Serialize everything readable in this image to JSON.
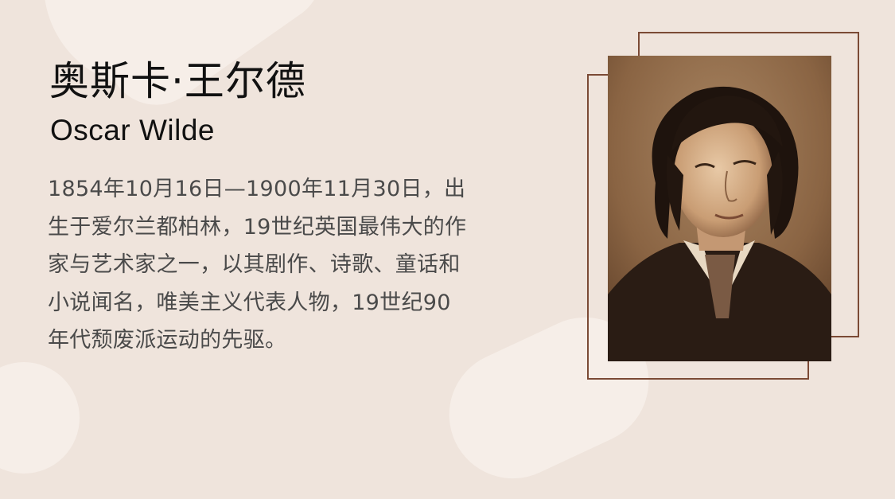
{
  "title_zh": "奥斯卡·王尔德",
  "title_en": "Oscar Wilde",
  "bio_lines": [
    "1854年10月16日—1900年11月30日，出",
    "生于爱尔兰都柏林，19世纪英国最伟大的作",
    "家与艺术家之一，以其剧作、诗歌、童话和",
    "小说闻名，唯美主义代表人物，19世纪90",
    "年代颓废派运动的先驱。"
  ],
  "colors": {
    "background": "#efe4dc",
    "frame": "#7b4a35",
    "body_text": "#4a4a4a",
    "title_text": "#111111"
  }
}
